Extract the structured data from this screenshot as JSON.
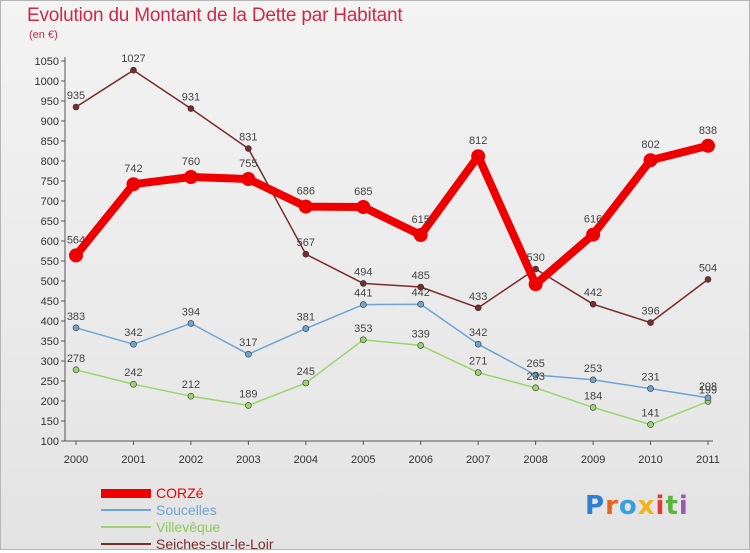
{
  "title": "Evolution du Montant de la Dette par Habitant",
  "unit": "(en €)",
  "logo": "Proxiti",
  "chart_data": {
    "type": "line",
    "x": [
      "2000",
      "2001",
      "2002",
      "2003",
      "2004",
      "2005",
      "2006",
      "2007",
      "2008",
      "2009",
      "2010",
      "2011"
    ],
    "ylim": [
      100,
      1050
    ],
    "yticks": [
      100,
      150,
      200,
      250,
      300,
      350,
      400,
      450,
      500,
      550,
      600,
      650,
      700,
      750,
      800,
      850,
      900,
      950,
      1000,
      1050
    ],
    "grid": false,
    "legend_position": "bottom-left",
    "series": [
      {
        "name": "CORZé",
        "color": "#ee0000",
        "width": 8,
        "label_color": "#ee0000",
        "values": [
          564,
          742,
          760,
          755,
          686,
          685,
          615,
          812,
          492,
          616,
          802,
          838
        ],
        "labels": [
          "564",
          "742",
          "760",
          "755",
          "686",
          "685",
          "615",
          "812",
          "",
          "616",
          "802",
          "838"
        ]
      },
      {
        "name": "Soucelles",
        "color": "#6fa4d2",
        "width": 1.5,
        "label_color": "#6fa4d2",
        "values": [
          383,
          342,
          394,
          317,
          381,
          441,
          442,
          342,
          265,
          253,
          231,
          208
        ],
        "labels": [
          "383",
          "342",
          "394",
          "317",
          "381",
          "441",
          "442",
          "342",
          "265",
          "253",
          "231",
          "208"
        ]
      },
      {
        "name": "Villevêque",
        "color": "#9ad46a",
        "width": 1.5,
        "label_color": "#8fc95c",
        "values": [
          278,
          242,
          212,
          189,
          245,
          353,
          339,
          271,
          233,
          184,
          141,
          199
        ],
        "labels": [
          "278",
          "242",
          "212",
          "189",
          "245",
          "353",
          "339",
          "271",
          "233",
          "184",
          "141",
          "199"
        ]
      },
      {
        "name": "Seiches-sur-le-Loir",
        "color": "#7a2b2b",
        "width": 1.5,
        "label_color": "#7a2b2b",
        "values": [
          935,
          1027,
          931,
          831,
          567,
          494,
          485,
          433,
          530,
          442,
          396,
          504
        ],
        "labels": [
          "935",
          "1027",
          "931",
          "831",
          "567",
          "494",
          "485",
          "433",
          "530",
          "442",
          "396",
          "504"
        ]
      }
    ]
  }
}
